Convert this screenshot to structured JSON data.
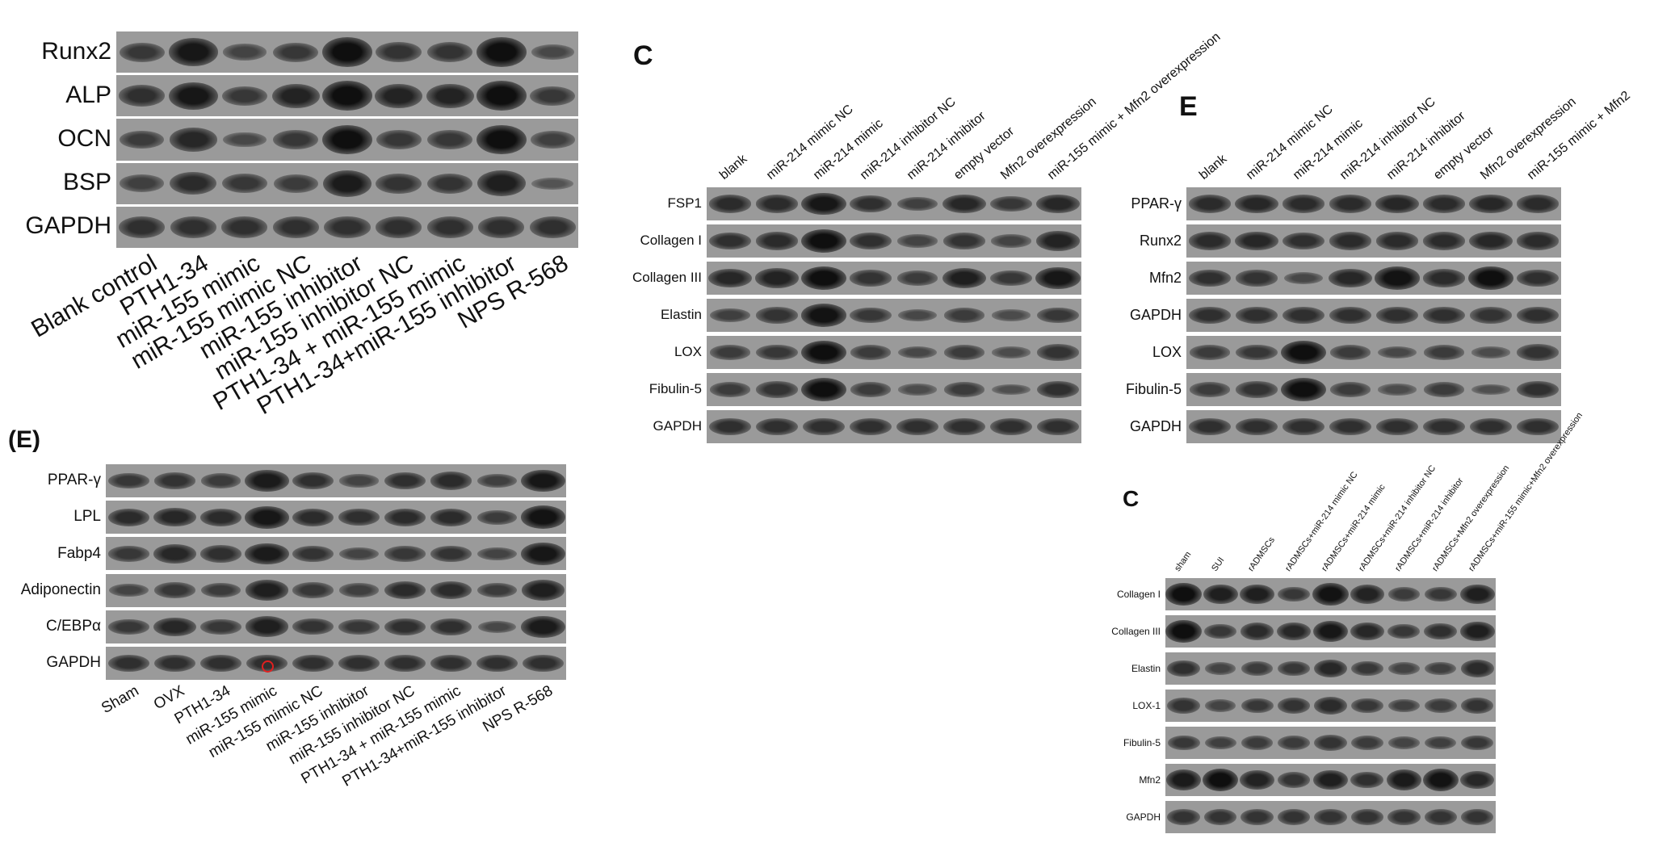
{
  "panels": {
    "osteo": {
      "letter": "",
      "rows": [
        {
          "label": "Runx2",
          "intensity": [
            0.5,
            0.9,
            0.35,
            0.5,
            1,
            0.55,
            0.55,
            1,
            0.3
          ]
        },
        {
          "label": "ALP",
          "intensity": [
            0.6,
            0.9,
            0.5,
            0.75,
            1,
            0.75,
            0.75,
            1,
            0.5
          ]
        },
        {
          "label": "OCN",
          "intensity": [
            0.45,
            0.7,
            0.3,
            0.5,
            1,
            0.5,
            0.5,
            1,
            0.4
          ]
        },
        {
          "label": "BSP",
          "intensity": [
            0.4,
            0.65,
            0.5,
            0.45,
            0.85,
            0.55,
            0.55,
            0.8,
            0.15
          ]
        },
        {
          "label": "GAPDH",
          "intensity": [
            0.6,
            0.6,
            0.6,
            0.6,
            0.6,
            0.6,
            0.6,
            0.6,
            0.6
          ]
        }
      ],
      "lanes": [
        "Blank control",
        "PTH1-34",
        "miR-155 mimic",
        "miR-155 mimic NC",
        "miR-155 inhibitor",
        "miR-155 inhibitor NC",
        "PTH1-34 + miR-155 mimic",
        "PTH1-34+miR-155 inhibitor",
        "NPS R-568"
      ]
    },
    "c_top": {
      "letter": "C",
      "rows": [
        {
          "label": "FSP1",
          "intensity": [
            0.65,
            0.65,
            0.9,
            0.6,
            0.4,
            0.7,
            0.5,
            0.7
          ]
        },
        {
          "label": "Collagen I",
          "intensity": [
            0.6,
            0.65,
            1,
            0.6,
            0.35,
            0.55,
            0.35,
            0.75
          ]
        },
        {
          "label": "Collagen III",
          "intensity": [
            0.7,
            0.75,
            1,
            0.55,
            0.45,
            0.8,
            0.5,
            0.9
          ]
        },
        {
          "label": "Elastin",
          "intensity": [
            0.4,
            0.55,
            0.95,
            0.5,
            0.3,
            0.45,
            0.25,
            0.5
          ]
        },
        {
          "label": "LOX",
          "intensity": [
            0.45,
            0.5,
            1,
            0.45,
            0.3,
            0.45,
            0.25,
            0.55
          ]
        },
        {
          "label": "Fibulin-5",
          "intensity": [
            0.45,
            0.55,
            1,
            0.45,
            0.25,
            0.45,
            0.2,
            0.6
          ]
        },
        {
          "label": "GAPDH",
          "intensity": [
            0.6,
            0.6,
            0.6,
            0.6,
            0.6,
            0.6,
            0.6,
            0.6
          ]
        }
      ],
      "lanes": [
        "blank",
        "miR-214 mimic NC",
        "miR-214 mimic",
        "miR-214 inhibitor NC",
        "miR-214 inhibitor",
        "empty vector",
        "Mfn2 overexpression",
        "miR-155 mimic + Mfn2 overexpression"
      ]
    },
    "e_top": {
      "letter": "E",
      "rows": [
        {
          "label": "PPAR-γ",
          "intensity": [
            0.65,
            0.7,
            0.65,
            0.65,
            0.7,
            0.65,
            0.7,
            0.65
          ]
        },
        {
          "label": "Runx2",
          "intensity": [
            0.65,
            0.7,
            0.6,
            0.65,
            0.65,
            0.65,
            0.7,
            0.65
          ]
        },
        {
          "label": "Mfn2",
          "intensity": [
            0.6,
            0.55,
            0.3,
            0.7,
            0.95,
            0.65,
            1,
            0.6
          ]
        },
        {
          "label": "GAPDH",
          "intensity": [
            0.6,
            0.6,
            0.6,
            0.6,
            0.6,
            0.6,
            0.55,
            0.6
          ]
        },
        {
          "label": "LOX",
          "intensity": [
            0.45,
            0.5,
            1,
            0.45,
            0.3,
            0.45,
            0.25,
            0.55
          ]
        },
        {
          "label": "Fibulin-5",
          "intensity": [
            0.45,
            0.55,
            1,
            0.45,
            0.25,
            0.45,
            0.2,
            0.6
          ]
        },
        {
          "label": "GAPDH",
          "intensity": [
            0.6,
            0.6,
            0.6,
            0.6,
            0.6,
            0.6,
            0.6,
            0.6
          ]
        }
      ],
      "lanes": [
        "blank",
        "miR-214 mimic NC",
        "miR-214 mimic",
        "miR-214 inhibitor NC",
        "miR-214 inhibitor",
        "empty vector",
        "Mfn2 overexpression",
        "miR-155 mimic + Mfn2"
      ]
    },
    "e_adipo": {
      "letter": "(E)",
      "rows": [
        {
          "label": "PPAR-γ",
          "intensity": [
            0.5,
            0.55,
            0.45,
            0.85,
            0.6,
            0.35,
            0.6,
            0.65,
            0.4,
            0.9
          ]
        },
        {
          "label": "LPL",
          "intensity": [
            0.65,
            0.7,
            0.65,
            0.9,
            0.65,
            0.6,
            0.65,
            0.65,
            0.45,
            0.95
          ]
        },
        {
          "label": "Fabp4",
          "intensity": [
            0.5,
            0.7,
            0.6,
            0.85,
            0.55,
            0.35,
            0.5,
            0.55,
            0.35,
            0.9
          ]
        },
        {
          "label": "Adiponectin",
          "intensity": [
            0.35,
            0.5,
            0.45,
            0.8,
            0.5,
            0.4,
            0.65,
            0.65,
            0.45,
            0.8
          ]
        },
        {
          "label": "C/EBPα",
          "intensity": [
            0.5,
            0.7,
            0.5,
            0.8,
            0.55,
            0.5,
            0.6,
            0.6,
            0.3,
            0.85
          ]
        },
        {
          "label": "GAPDH",
          "intensity": [
            0.6,
            0.6,
            0.6,
            0.6,
            0.6,
            0.6,
            0.6,
            0.6,
            0.6,
            0.6
          ]
        }
      ],
      "lanes": [
        "Sham",
        "OVX",
        "PTH1-34",
        "miR-155 mimic",
        "miR-155 mimic NC",
        "miR-155 inhibitor",
        "miR-155 inhibitor NC",
        "PTH1-34 + miR-155 mimic",
        "PTH1-34+miR-155 inhibitor",
        "NPS R-568"
      ],
      "marker_color": "#e02020"
    },
    "c_bottom": {
      "letter": "C",
      "rows": [
        {
          "label": "Collagen I",
          "intensity": [
            1,
            0.8,
            0.8,
            0.5,
            0.95,
            0.75,
            0.45,
            0.5,
            0.8
          ]
        },
        {
          "label": "Collagen III",
          "intensity": [
            1,
            0.5,
            0.65,
            0.7,
            0.9,
            0.7,
            0.5,
            0.6,
            0.8
          ]
        },
        {
          "label": "Elastin",
          "intensity": [
            0.6,
            0.35,
            0.45,
            0.5,
            0.7,
            0.5,
            0.35,
            0.4,
            0.65
          ]
        },
        {
          "label": "LOX-1",
          "intensity": [
            0.55,
            0.35,
            0.5,
            0.55,
            0.65,
            0.5,
            0.4,
            0.45,
            0.55
          ]
        },
        {
          "label": "Fibulin-5",
          "intensity": [
            0.5,
            0.4,
            0.45,
            0.45,
            0.55,
            0.45,
            0.35,
            0.4,
            0.5
          ]
        },
        {
          "label": "Mfn2",
          "intensity": [
            0.85,
            1,
            0.75,
            0.55,
            0.8,
            0.6,
            0.85,
            0.95,
            0.7
          ]
        },
        {
          "label": "GAPDH",
          "intensity": [
            0.55,
            0.55,
            0.55,
            0.55,
            0.55,
            0.55,
            0.55,
            0.55,
            0.55
          ]
        }
      ],
      "lanes": [
        "sham",
        "SUI",
        "rADMSCs",
        "rADMSCs+miR-214 mimic NC",
        "rADMSCs+miR-214 mimic",
        "rADMSCs+miR-214 inhibitor NC",
        "rADMSCs+miR-214 inhibitor",
        "rADMSCs+Mfn2 overexpression",
        "rADMSCs+miR-155 mimic+Mfn2 overexpression"
      ]
    }
  }
}
